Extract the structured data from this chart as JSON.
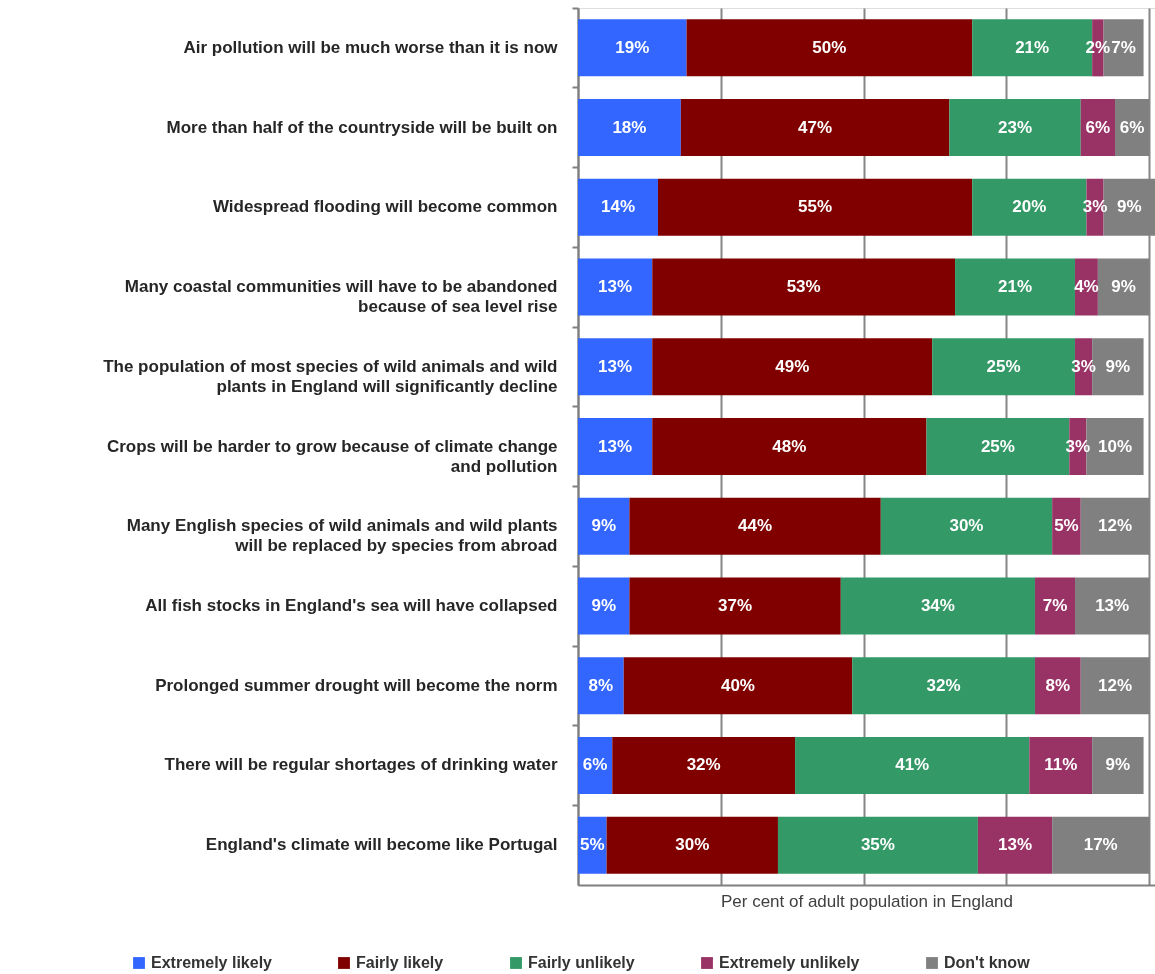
{
  "chart_data": {
    "type": "bar",
    "orientation": "horizontal",
    "stacked": true,
    "categories": [
      "Air pollution will be much worse than it is now",
      "More than half of the countryside will be built on",
      "Widespread flooding will become common",
      "Many coastal communities will have to be abandoned because of sea level rise",
      "The population of most species of wild animals and wild plants in England will significantly decline",
      "Crops will be harder to grow because of climate change and pollution",
      "Many English species of wild animals and wild  plants will be replaced by species from abroad",
      "All fish stocks in England's sea will have collapsed",
      "Prolonged summer drought will become the norm",
      "There will be regular shortages of drinking water",
      "England's climate will become like Portugal"
    ],
    "series": [
      {
        "name": "Extremely likely",
        "color": "#3366ff",
        "values": [
          19,
          18,
          14,
          13,
          13,
          13,
          9,
          9,
          8,
          6,
          5
        ],
        "value_labels": [
          "19%",
          "18%",
          "14%",
          "13%",
          "13%",
          "13%",
          "9%",
          "9%",
          "8%",
          "6%",
          "5%"
        ]
      },
      {
        "name": "Fairly likely",
        "color": "#800000",
        "values": [
          50,
          47,
          55,
          53,
          49,
          48,
          44,
          37,
          40,
          32,
          30
        ],
        "value_labels": [
          "50%",
          "47%",
          "55%",
          "53%",
          "49%",
          "48%",
          "44%",
          "37%",
          "40%",
          "32%",
          "30%"
        ]
      },
      {
        "name": "Fairly unlikely",
        "color": "#339966",
        "values": [
          21,
          23,
          20,
          21,
          25,
          25,
          30,
          34,
          32,
          41,
          35
        ],
        "value_labels": [
          "21%",
          "23%",
          "20%",
          "21%",
          "25%",
          "25%",
          "30%",
          "34%",
          "32%",
          "41%",
          "35%"
        ]
      },
      {
        "name": "Extremely unlikely",
        "color": "#993366",
        "values": [
          2,
          6,
          3,
          4,
          3,
          3,
          5,
          7,
          8,
          11,
          13
        ],
        "value_labels": [
          "2%",
          "6%",
          "3%",
          "4%",
          "3%",
          "3%",
          "5%",
          "7%",
          "8%",
          "11%",
          "13%"
        ]
      },
      {
        "name": "Don't know",
        "color": "#808080",
        "values": [
          7,
          6,
          9,
          9,
          9,
          10,
          12,
          13,
          12,
          9,
          17
        ],
        "value_labels": [
          "7%",
          "6%",
          "9%",
          "9%",
          "9%",
          "10%",
          "12%",
          "13%",
          "12%",
          "9%",
          "17%"
        ]
      }
    ],
    "xlabel": "Per cent of adult population in England",
    "xlim": [
      0,
      101
    ],
    "xticks": [
      {
        "value": 0,
        "label": null
      },
      {
        "value": 25,
        "label": null
      },
      {
        "value": 50,
        "label": null
      },
      {
        "value": 75,
        "label": null
      },
      {
        "value": 100,
        "label": null
      }
    ],
    "tick_labels": "y",
    "grid": "x",
    "legend": "bottom"
  }
}
